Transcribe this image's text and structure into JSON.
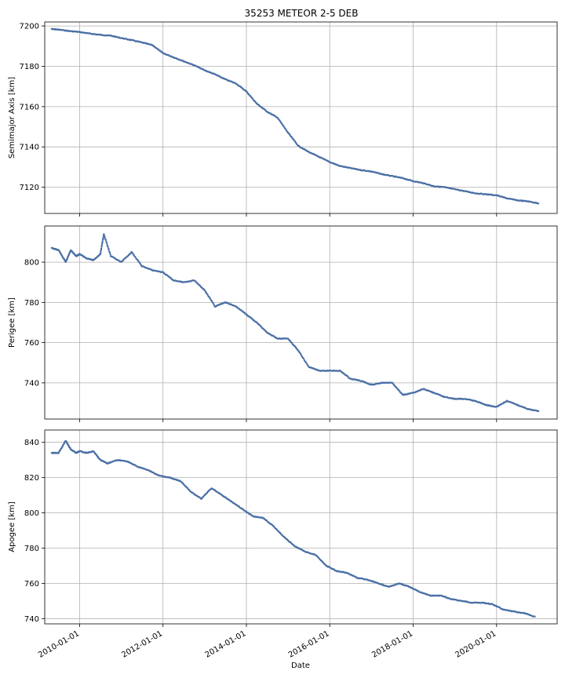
{
  "chart_data": [
    {
      "type": "scatter",
      "title": "35253 METEOR 2-5 DEB",
      "xlabel": "",
      "ylabel": "Semimajor Axis [km]",
      "ylim": [
        7107,
        7202
      ],
      "yticks": [
        7120,
        7140,
        7160,
        7180,
        7200
      ],
      "grid": true,
      "series": [
        {
          "x": [
            "2009-05-01",
            "2009-07-01",
            "2009-10-01",
            "2010-01-01",
            "2010-04-01",
            "2010-07-01",
            "2010-10-01",
            "2011-01-01",
            "2011-04-01",
            "2011-07-01",
            "2011-10-01",
            "2012-01-01",
            "2012-04-01",
            "2012-07-01",
            "2012-10-01",
            "2013-01-01",
            "2013-04-01",
            "2013-07-01",
            "2013-10-01",
            "2014-01-01",
            "2014-04-01",
            "2014-07-01",
            "2014-10-01",
            "2015-01-01",
            "2015-04-01",
            "2015-07-01",
            "2015-10-01",
            "2016-01-01",
            "2016-04-01",
            "2016-07-01",
            "2016-10-01",
            "2017-01-01",
            "2017-04-01",
            "2017-07-01",
            "2017-10-01",
            "2018-01-01",
            "2018-04-01",
            "2018-07-01",
            "2018-10-01",
            "2019-01-01",
            "2019-04-01",
            "2019-07-01",
            "2019-10-01",
            "2020-01-01",
            "2020-04-01",
            "2020-07-01",
            "2020-10-01",
            "2021-01-01"
          ],
          "values": [
            7198.5,
            7198.2,
            7197.5,
            7197.0,
            7196.2,
            7195.6,
            7195.2,
            7194.0,
            7193.0,
            7191.8,
            7190.5,
            7186.5,
            7184.5,
            7182.5,
            7180.5,
            7178.0,
            7176.0,
            7173.5,
            7171.5,
            7167.5,
            7161.5,
            7157.5,
            7154.5,
            7147.0,
            7140.5,
            7137.5,
            7135.0,
            7132.5,
            7130.5,
            7129.5,
            7128.5,
            7127.8,
            7126.5,
            7125.5,
            7124.5,
            7123.0,
            7122.0,
            7120.5,
            7120.0,
            7119.0,
            7118.0,
            7117.0,
            7116.5,
            7116.0,
            7114.5,
            7113.5,
            7113.0,
            7112.0
          ]
        }
      ]
    },
    {
      "type": "scatter",
      "title": "",
      "xlabel": "",
      "ylabel": "Perigee [km]",
      "ylim": [
        722,
        818
      ],
      "yticks": [
        740,
        760,
        780,
        800
      ],
      "grid": true,
      "series": [
        {
          "x": [
            "2009-05-01",
            "2009-07-01",
            "2009-09-01",
            "2009-10-15",
            "2009-12-01",
            "2010-01-01",
            "2010-03-01",
            "2010-05-01",
            "2010-07-01",
            "2010-08-01",
            "2010-10-01",
            "2011-01-01",
            "2011-04-01",
            "2011-07-01",
            "2011-10-01",
            "2012-01-01",
            "2012-04-01",
            "2012-07-01",
            "2012-10-01",
            "2013-01-01",
            "2013-04-01",
            "2013-07-01",
            "2013-10-01",
            "2014-01-01",
            "2014-04-01",
            "2014-07-01",
            "2014-10-01",
            "2015-01-01",
            "2015-04-01",
            "2015-07-01",
            "2015-10-01",
            "2016-01-01",
            "2016-04-01",
            "2016-07-01",
            "2016-10-01",
            "2017-01-01",
            "2017-04-01",
            "2017-07-01",
            "2017-10-01",
            "2018-01-01",
            "2018-04-01",
            "2018-07-01",
            "2018-10-01",
            "2019-01-01",
            "2019-04-01",
            "2019-07-01",
            "2019-10-01",
            "2020-01-01",
            "2020-04-01",
            "2020-07-01",
            "2020-10-01",
            "2021-01-01"
          ],
          "values": [
            807,
            806,
            800,
            806,
            803,
            804,
            802,
            801,
            804,
            814,
            803,
            800,
            805,
            798,
            796,
            795,
            791,
            790,
            791,
            786,
            778,
            780,
            778,
            774,
            770,
            765,
            762,
            762,
            756,
            748,
            746,
            746,
            746,
            742,
            741,
            739,
            740,
            740,
            734,
            735,
            737,
            735,
            733,
            732,
            732,
            731,
            729,
            728,
            731,
            729,
            727,
            726
          ]
        }
      ]
    },
    {
      "type": "scatter",
      "title": "",
      "xlabel": "Date",
      "ylabel": "Apogee [km]",
      "ylim": [
        737,
        847
      ],
      "yticks": [
        740,
        760,
        780,
        800,
        820,
        840
      ],
      "xticks": [
        "2010-01-01",
        "2012-01-01",
        "2014-01-01",
        "2016-01-01",
        "2018-01-01",
        "2020-01-01"
      ],
      "grid": true,
      "series": [
        {
          "x": [
            "2009-05-01",
            "2009-07-01",
            "2009-09-01",
            "2009-10-15",
            "2009-12-01",
            "2010-01-01",
            "2010-03-01",
            "2010-05-01",
            "2010-07-01",
            "2010-09-01",
            "2010-12-01",
            "2011-03-01",
            "2011-06-01",
            "2011-09-01",
            "2011-12-01",
            "2012-03-01",
            "2012-06-01",
            "2012-09-01",
            "2012-12-01",
            "2013-03-01",
            "2013-06-01",
            "2013-09-01",
            "2013-12-01",
            "2014-03-01",
            "2014-06-01",
            "2014-09-01",
            "2014-12-01",
            "2015-03-01",
            "2015-06-01",
            "2015-09-01",
            "2015-12-01",
            "2016-03-01",
            "2016-06-01",
            "2016-09-01",
            "2016-12-01",
            "2017-03-01",
            "2017-06-01",
            "2017-09-01",
            "2017-12-01",
            "2018-03-01",
            "2018-06-01",
            "2018-09-01",
            "2018-12-01",
            "2019-03-01",
            "2019-06-01",
            "2019-09-01",
            "2019-12-01",
            "2020-03-01",
            "2020-06-01",
            "2020-09-01",
            "2020-12-01"
          ],
          "values": [
            834,
            834,
            841,
            836,
            834,
            835,
            834,
            835,
            830,
            828,
            830,
            829,
            826,
            824,
            821,
            820,
            818,
            812,
            808,
            814,
            810,
            806,
            802,
            798,
            797,
            792,
            786,
            781,
            778,
            776,
            770,
            767,
            766,
            763,
            762,
            760,
            758,
            760,
            758,
            755,
            753,
            753,
            751,
            750,
            749,
            749,
            748,
            745,
            744,
            743,
            741
          ]
        }
      ]
    }
  ]
}
